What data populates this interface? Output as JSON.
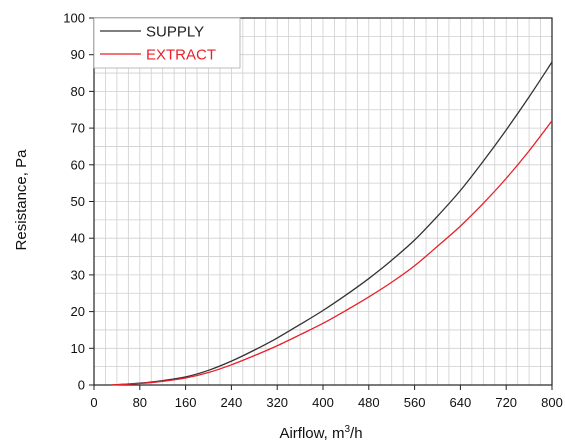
{
  "chart_data": {
    "type": "line",
    "xlabel_main": "Airflow, m",
    "xlabel_sup": "3",
    "xlabel_tail": "/h",
    "ylabel": "Resistance, Pa",
    "xlim": [
      0,
      800
    ],
    "ylim": [
      0,
      100
    ],
    "xticks": [
      0,
      80,
      160,
      240,
      320,
      400,
      480,
      560,
      640,
      720,
      800
    ],
    "yticks": [
      0,
      10,
      20,
      30,
      40,
      50,
      60,
      70,
      80,
      90,
      100
    ],
    "grid": true,
    "legend_placement": "top-left",
    "series": [
      {
        "name": "SUPPLY",
        "color": "#333333",
        "x": [
          30,
          80,
          120,
          160,
          200,
          240,
          280,
          320,
          360,
          400,
          440,
          480,
          520,
          560,
          600,
          640,
          680,
          720,
          760,
          800
        ],
        "y": [
          0,
          0.5,
          1.2,
          2.2,
          4.0,
          6.5,
          9.5,
          12.8,
          16.5,
          20.3,
          24.5,
          29.0,
          34.0,
          39.5,
          46.0,
          53.0,
          61.0,
          69.5,
          78.5,
          88.0
        ]
      },
      {
        "name": "EXTRACT",
        "color": "#e8202a",
        "x": [
          30,
          80,
          120,
          160,
          200,
          240,
          280,
          320,
          360,
          400,
          440,
          480,
          520,
          560,
          600,
          640,
          680,
          720,
          760,
          800
        ],
        "y": [
          0,
          0.4,
          1.0,
          1.9,
          3.4,
          5.5,
          8.0,
          10.7,
          13.7,
          16.8,
          20.3,
          24.0,
          28.0,
          32.5,
          37.8,
          43.3,
          49.5,
          56.3,
          63.8,
          72.0
        ]
      }
    ]
  }
}
